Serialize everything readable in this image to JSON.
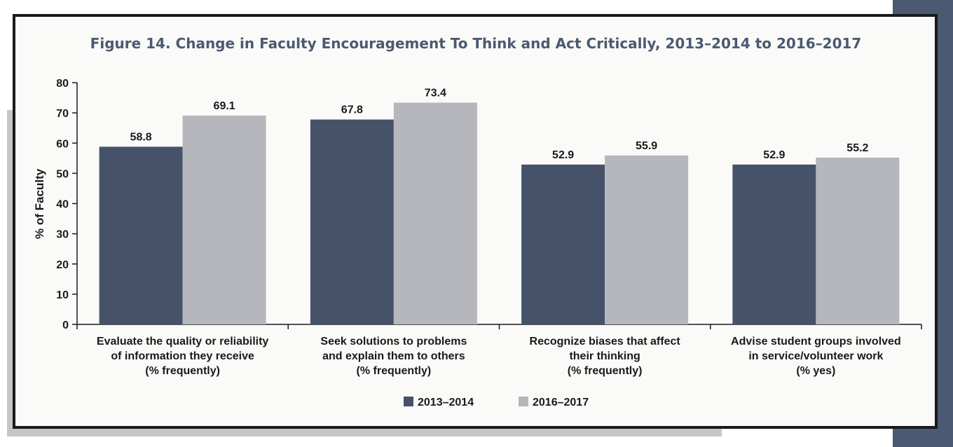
{
  "chart_data": {
    "type": "bar",
    "title": "Figure 14. Change in Faculty Encouragement To Think and Act Critically, 2013–2014 to 2016–2017",
    "ylabel": "% of Faculty",
    "xlabel": "",
    "ylim": [
      0,
      80
    ],
    "yticks": [
      "0",
      "10",
      "20",
      "30",
      "40",
      "50",
      "60",
      "70",
      "80"
    ],
    "categories": [
      [
        "Evaluate the quality or reliability",
        "of information they receive",
        "(% frequently)"
      ],
      [
        "Seek solutions to problems",
        "and explain them to others",
        "(% frequently)"
      ],
      [
        "Recognize biases that affect",
        "their thinking",
        "(% frequently)"
      ],
      [
        "Advise student groups involved",
        "in service/volunteer work",
        "(% yes)"
      ]
    ],
    "series": [
      {
        "name": "2013–2014",
        "color": "#46526a",
        "values": [
          58.8,
          67.8,
          52.9,
          52.9
        ],
        "labels": [
          "58.8",
          "67.8",
          "52.9",
          "52.9"
        ]
      },
      {
        "name": "2016–2017",
        "color": "#b6b6bd",
        "values": [
          69.1,
          73.4,
          55.9,
          55.2
        ],
        "labels": [
          "69.1",
          "73.4",
          "55.9",
          "55.2"
        ]
      }
    ],
    "grid": false,
    "legend_position": "bottom"
  },
  "colors": {
    "title": "#4b5a72",
    "frame": "#1a1a1a",
    "side_accent": "#4b5a72",
    "shadow": "#c5c6ca"
  }
}
